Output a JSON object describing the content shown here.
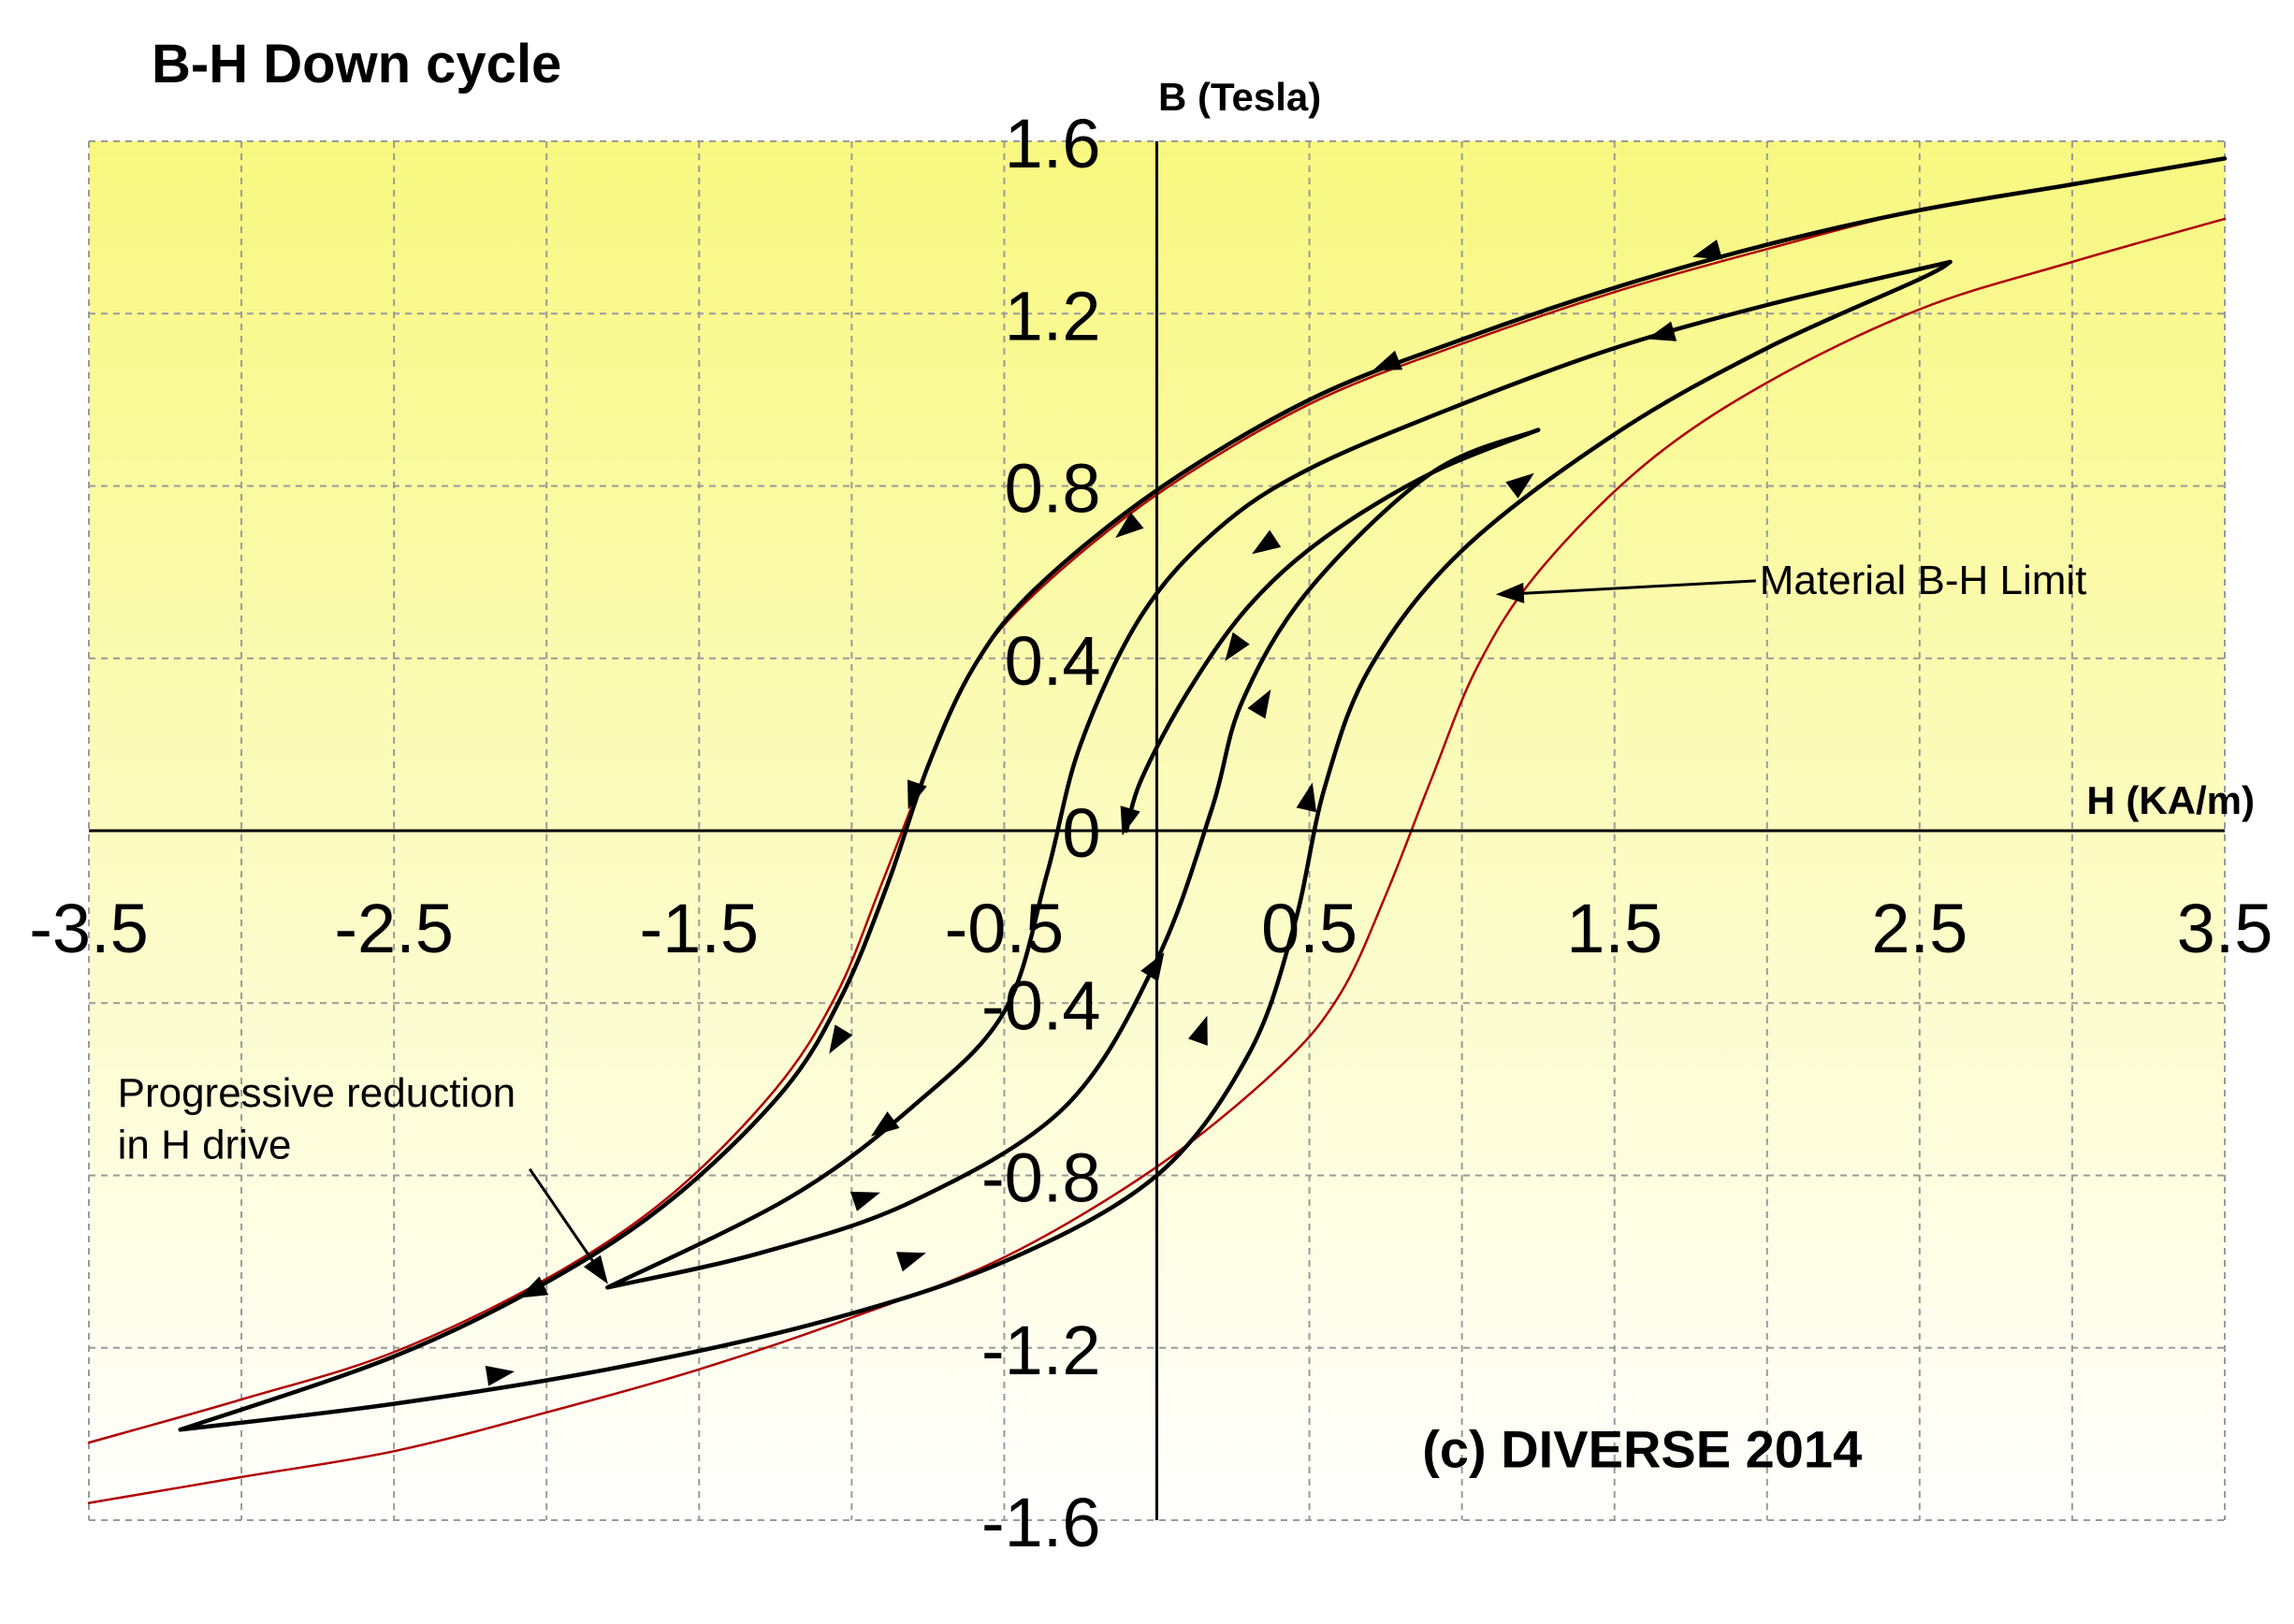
{
  "chart_data": {
    "type": "line",
    "title": "B-H Down cycle",
    "xlabel": "H (KA/m)",
    "ylabel": "B (Tesla)",
    "xlim": [
      -3.5,
      3.5
    ],
    "ylim": [
      -1.6,
      1.6
    ],
    "xticks": [
      -3.5,
      -2.5,
      -1.5,
      -0.5,
      0.5,
      1.5,
      2.5,
      3.5
    ],
    "xtick_labels": [
      "-3.5",
      "-2.5",
      "-1.5",
      "-0.5",
      "0.5",
      "1.5",
      "2.5",
      "3.5"
    ],
    "yticks": [
      1.6,
      1.2,
      0.8,
      0.4,
      0,
      -0.4,
      -0.8,
      -1.2,
      -1.6
    ],
    "ytick_labels": [
      "1.6",
      "1.2",
      "0.8",
      "0.4",
      "0",
      "-0.4",
      "-0.8",
      "-1.2",
      "-1.6"
    ],
    "grid": true,
    "background_gradient": [
      "#f8f880",
      "#ffffff"
    ],
    "colors": {
      "loop": "#000000",
      "limit": "#b00000",
      "grid": "#9a9a9a",
      "axis": "#000000"
    },
    "series": [
      {
        "kind": "limit",
        "points": [
          [
            -3.5,
            -1.42
          ],
          [
            -3.0,
            -1.32
          ],
          [
            -2.5,
            -1.21
          ],
          [
            -2.0,
            -1.04
          ],
          [
            -1.6,
            -0.85
          ],
          [
            -1.25,
            -0.6
          ],
          [
            -1.05,
            -0.38
          ],
          [
            -0.9,
            -0.12
          ],
          [
            -0.75,
            0.15
          ],
          [
            -0.6,
            0.38
          ],
          [
            -0.4,
            0.55
          ],
          [
            0.0,
            0.78
          ],
          [
            0.5,
            0.99
          ],
          [
            1.0,
            1.13
          ],
          [
            1.5,
            1.25
          ],
          [
            2.0,
            1.35
          ],
          [
            2.5,
            1.44
          ],
          [
            3.0,
            1.5
          ],
          [
            3.5,
            1.56
          ]
        ]
      },
      {
        "kind": "limit",
        "points": [
          [
            3.5,
            1.42
          ],
          [
            3.0,
            1.32
          ],
          [
            2.5,
            1.21
          ],
          [
            2.0,
            1.04
          ],
          [
            1.6,
            0.85
          ],
          [
            1.25,
            0.6
          ],
          [
            1.05,
            0.38
          ],
          [
            0.9,
            0.12
          ],
          [
            0.75,
            -0.15
          ],
          [
            0.6,
            -0.38
          ],
          [
            0.4,
            -0.55
          ],
          [
            0.0,
            -0.78
          ],
          [
            -0.5,
            -0.99
          ],
          [
            -1.0,
            -1.13
          ],
          [
            -1.5,
            -1.25
          ],
          [
            -2.0,
            -1.35
          ],
          [
            -2.5,
            -1.44
          ],
          [
            -3.0,
            -1.5
          ],
          [
            -3.5,
            -1.56
          ]
        ]
      },
      {
        "kind": "loop",
        "points": [
          [
            3.5,
            1.56
          ],
          [
            3.0,
            1.5
          ],
          [
            2.5,
            1.44
          ],
          [
            2.0,
            1.36
          ],
          [
            1.5,
            1.26
          ],
          [
            1.0,
            1.14
          ],
          [
            0.5,
            1.0
          ],
          [
            0.0,
            0.79
          ],
          [
            -0.4,
            0.56
          ],
          [
            -0.6,
            0.38
          ],
          [
            -0.75,
            0.15
          ],
          [
            -0.88,
            -0.12
          ],
          [
            -1.03,
            -0.38
          ],
          [
            -1.22,
            -0.6
          ],
          [
            -1.58,
            -0.85
          ],
          [
            -1.98,
            -1.04
          ],
          [
            -2.5,
            -1.22
          ],
          [
            -3.2,
            -1.39
          ]
        ],
        "arrows": [
          [
            1.8,
            1.34,
            -1
          ],
          [
            0.75,
            1.08,
            -1
          ],
          [
            -0.1,
            0.7,
            -1
          ],
          [
            -0.8,
            0.08,
            -1
          ],
          [
            -1.05,
            -0.49,
            -1
          ],
          [
            -2.05,
            -1.07,
            -1
          ]
        ]
      },
      {
        "kind": "loop",
        "points": [
          [
            -3.2,
            -1.39
          ],
          [
            -2.5,
            -1.33
          ],
          [
            -1.8,
            -1.25
          ],
          [
            -1.1,
            -1.14
          ],
          [
            -0.5,
            -1.0
          ],
          [
            0.0,
            -0.8
          ],
          [
            0.3,
            -0.52
          ],
          [
            0.45,
            -0.22
          ],
          [
            0.55,
            0.1
          ],
          [
            0.7,
            0.38
          ],
          [
            1.0,
            0.65
          ],
          [
            1.5,
            0.92
          ],
          [
            2.0,
            1.12
          ],
          [
            2.5,
            1.28
          ],
          [
            2.6,
            1.32
          ]
        ],
        "arrows": [
          [
            -2.15,
            -1.26,
            1
          ],
          [
            -0.8,
            -0.99,
            1
          ],
          [
            0.15,
            -0.46,
            1
          ],
          [
            0.5,
            0.08,
            1
          ],
          [
            1.2,
            0.81,
            1
          ]
        ]
      },
      {
        "kind": "loop",
        "points": [
          [
            2.6,
            1.32
          ],
          [
            2.0,
            1.22
          ],
          [
            1.5,
            1.12
          ],
          [
            1.0,
            0.99
          ],
          [
            0.5,
            0.84
          ],
          [
            0.2,
            0.7
          ],
          [
            -0.05,
            0.5
          ],
          [
            -0.25,
            0.2
          ],
          [
            -0.36,
            -0.1
          ],
          [
            -0.5,
            -0.42
          ],
          [
            -0.8,
            -0.64
          ],
          [
            -1.2,
            -0.85
          ],
          [
            -1.8,
            -1.06
          ]
        ],
        "arrows": [
          [
            1.65,
            1.15,
            -1
          ],
          [
            0.35,
            0.66,
            -1
          ],
          [
            -0.9,
            -0.69,
            -1
          ]
        ]
      },
      {
        "kind": "loop",
        "points": [
          [
            -1.8,
            -1.06
          ],
          [
            -1.3,
            -0.98
          ],
          [
            -0.8,
            -0.86
          ],
          [
            -0.3,
            -0.64
          ],
          [
            0.0,
            -0.3
          ],
          [
            0.18,
            0.05
          ],
          [
            0.28,
            0.3
          ],
          [
            0.5,
            0.56
          ],
          [
            0.9,
            0.83
          ],
          [
            1.25,
            0.93
          ]
        ],
        "arrows": [
          [
            -0.95,
            -0.85,
            1
          ],
          [
            0.0,
            -0.31,
            1
          ],
          [
            0.35,
            0.3,
            1
          ]
        ]
      },
      {
        "kind": "loop",
        "points": [
          [
            1.25,
            0.93
          ],
          [
            0.9,
            0.83
          ],
          [
            0.55,
            0.68
          ],
          [
            0.3,
            0.52
          ],
          [
            0.1,
            0.32
          ],
          [
            -0.05,
            0.12
          ],
          [
            -0.1,
            0.0
          ]
        ],
        "arrows": [
          [
            0.25,
            0.42,
            -1
          ],
          [
            -0.1,
            0.02,
            -1
          ]
        ]
      }
    ],
    "annotations": [
      {
        "text": "Material B-H Limit",
        "pos": [
          2.0,
          0.58
        ],
        "arrow_to": [
          1.12,
          0.55
        ]
      },
      {
        "text": "Progressive reduction",
        "pos": [
          -3.4,
          -0.61
        ]
      },
      {
        "text": "in H drive",
        "pos": [
          -3.4,
          -0.73
        ],
        "arrow_to": [
          -1.8,
          -1.06
        ],
        "arrow_from": [
          -2.0,
          -0.72
        ]
      },
      {
        "text": "(c) DIVERSE 2014",
        "pos": [
          0.87,
          -1.43
        ]
      }
    ]
  }
}
